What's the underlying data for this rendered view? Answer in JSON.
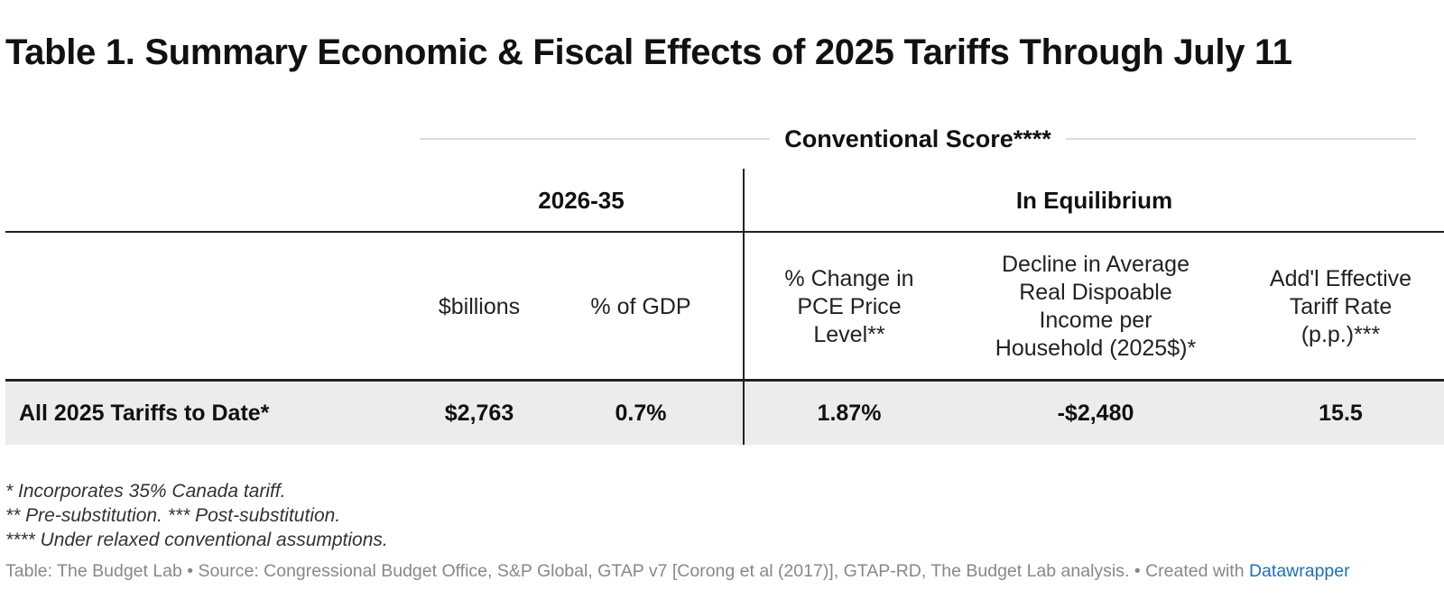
{
  "title": "Table 1. Summary Economic & Fiscal Effects of 2025 Tariffs Through July 11",
  "chart_data": {
    "type": "table",
    "title": "Table 1. Summary Economic & Fiscal Effects of 2025 Tariffs Through July 11",
    "spanner": "Conventional Score****",
    "column_groups": [
      {
        "label": "2026-35",
        "columns": [
          "$billions",
          "% of GDP"
        ]
      },
      {
        "label": "In Equilibrium",
        "columns": [
          "% Change in PCE Price Level**",
          "Decline in Average Real Dispoable Income per Household (2025$)*",
          "Add'l Effective Tariff Rate (p.p.)***"
        ]
      }
    ],
    "columns": [
      {
        "key": "billions",
        "lines": [
          "$billions"
        ]
      },
      {
        "key": "pct_gdp",
        "lines": [
          "% of GDP"
        ]
      },
      {
        "key": "pce",
        "lines": [
          "% Change in",
          "PCE Price",
          "Level**"
        ]
      },
      {
        "key": "income",
        "lines": [
          "Decline in Average",
          "Real Dispoable",
          "Income per",
          "Household (2025$)*"
        ]
      },
      {
        "key": "tariff_rate",
        "lines": [
          "Add'l Effective",
          "Tariff Rate",
          "(p.p.)***"
        ]
      }
    ],
    "rows": [
      {
        "label": "All 2025 Tariffs to Date*",
        "values": [
          "$2,763",
          "0.7%",
          "1.87%",
          "-$2,480",
          "15.5"
        ]
      }
    ]
  },
  "notes": [
    "* Incorporates 35% Canada tariff.",
    "** Pre-substitution. *** Post-substitution.",
    "**** Under relaxed conventional assumptions."
  ],
  "footer": {
    "text": "Table: The Budget Lab • Source: Congressional Budget Office, S&P Global, GTAP v7 [Corong et al (2017)], GTAP-RD, The Budget Lab analysis. • Created with ",
    "link_label": "Datawrapper"
  },
  "colors": {
    "text": "#111111",
    "row_band": "#ececec",
    "rule": "#dcdcdc",
    "link": "#1f6fbf",
    "footer": "#888888"
  }
}
